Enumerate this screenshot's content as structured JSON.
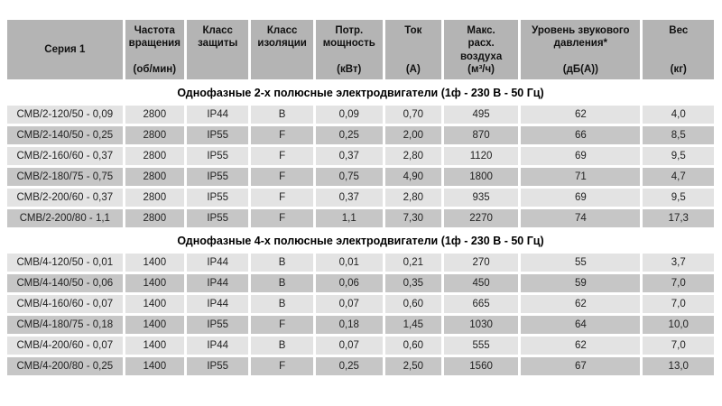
{
  "colors": {
    "header_bg": "#b4b4b4",
    "row_light": "#e3e3e3",
    "row_dark": "#c6c6c6",
    "page_bg": "#ffffff",
    "text": "#222222"
  },
  "table": {
    "columns": [
      {
        "label": "Серия 1",
        "unit": ""
      },
      {
        "label": "Частота\nвращения",
        "unit": "(об/мин)"
      },
      {
        "label": "Класс\nзащиты",
        "unit": ""
      },
      {
        "label": "Класс\nизоляции",
        "unit": ""
      },
      {
        "label": "Потр.\nмощность",
        "unit": "(кВт)"
      },
      {
        "label": "Ток",
        "unit": "(А)"
      },
      {
        "label": "Макс.\nрасх.\nвоздуха",
        "unit": "(м³/ч)"
      },
      {
        "label": "Уровень звукового\nдавления*",
        "unit": "(дБ(А))"
      },
      {
        "label": "Вес",
        "unit": "(кг)"
      }
    ],
    "sections": [
      {
        "title": "Однофазные 2-х полюсные электродвигатели (1ф - 230 В - 50 Гц)",
        "rows": [
          [
            "СМВ/2-120/50 - 0,09",
            "2800",
            "IP44",
            "B",
            "0,09",
            "0,70",
            "495",
            "62",
            "4,0"
          ],
          [
            "СМВ/2-140/50 - 0,25",
            "2800",
            "IP55",
            "F",
            "0,25",
            "2,00",
            "870",
            "66",
            "8,5"
          ],
          [
            "СМВ/2-160/60 - 0,37",
            "2800",
            "IP55",
            "F",
            "0,37",
            "2,80",
            "1120",
            "69",
            "9,5"
          ],
          [
            "СМВ/2-180/75 - 0,75",
            "2800",
            "IP55",
            "F",
            "0,75",
            "4,90",
            "1800",
            "71",
            "4,7"
          ],
          [
            "СМВ/2-200/60 - 0,37",
            "2800",
            "IP55",
            "F",
            "0,37",
            "2,80",
            "935",
            "69",
            "9,5"
          ],
          [
            "СМВ/2-200/80 - 1,1",
            "2800",
            "IP55",
            "F",
            "1,1",
            "7,30",
            "2270",
            "74",
            "17,3"
          ]
        ]
      },
      {
        "title": "Однофазные 4-х полюсные электродвигатели (1ф - 230 В - 50 Гц)",
        "rows": [
          [
            "СМВ/4-120/50 - 0,01",
            "1400",
            "IP44",
            "B",
            "0,01",
            "0,21",
            "270",
            "55",
            "3,7"
          ],
          [
            "СМВ/4-140/50 - 0,06",
            "1400",
            "IP44",
            "B",
            "0,06",
            "0,35",
            "450",
            "59",
            "7,0"
          ],
          [
            "СМВ/4-160/60 - 0,07",
            "1400",
            "IP44",
            "B",
            "0,07",
            "0,60",
            "665",
            "62",
            "7,0"
          ],
          [
            "СМВ/4-180/75 - 0,18",
            "1400",
            "IP55",
            "F",
            "0,18",
            "1,45",
            "1030",
            "64",
            "10,0"
          ],
          [
            "СМВ/4-200/60 - 0,07",
            "1400",
            "IP44",
            "B",
            "0,07",
            "0,60",
            "555",
            "62",
            "7,0"
          ],
          [
            "СМВ/4-200/80 - 0,25",
            "1400",
            "IP55",
            "F",
            "0,25",
            "2,50",
            "1560",
            "67",
            "13,0"
          ]
        ]
      }
    ]
  }
}
